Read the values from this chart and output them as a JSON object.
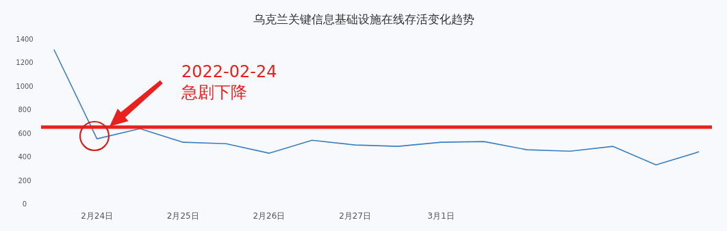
{
  "chart_data": {
    "type": "line",
    "title": "乌克兰关键信息基础设施在线存活变化趋势",
    "categories": [
      null,
      "2月24日",
      null,
      "2月25日",
      null,
      "2月26日",
      null,
      "2月27日",
      null,
      "3月1日",
      null,
      null,
      null,
      null,
      null,
      null
    ],
    "series": [
      {
        "color": "#3a7fc0",
        "values": [
          1310,
          551,
          638,
          522,
          510,
          429,
          539,
          499,
          487,
          522,
          528,
          458,
          446,
          487,
          330,
          441
        ]
      }
    ],
    "ylim": [
      0,
      1400
    ],
    "yticks": [
      0,
      200,
      400,
      600,
      800,
      1000,
      1200,
      1400
    ],
    "ref_lines": [
      {
        "axis": "y",
        "value": 650,
        "color": "#e8201e",
        "line_style": "solid"
      }
    ],
    "annotations": [
      "2022-02-24\n急剧下降"
    ],
    "grid": false,
    "marker": "none",
    "line_style": "solid"
  }
}
